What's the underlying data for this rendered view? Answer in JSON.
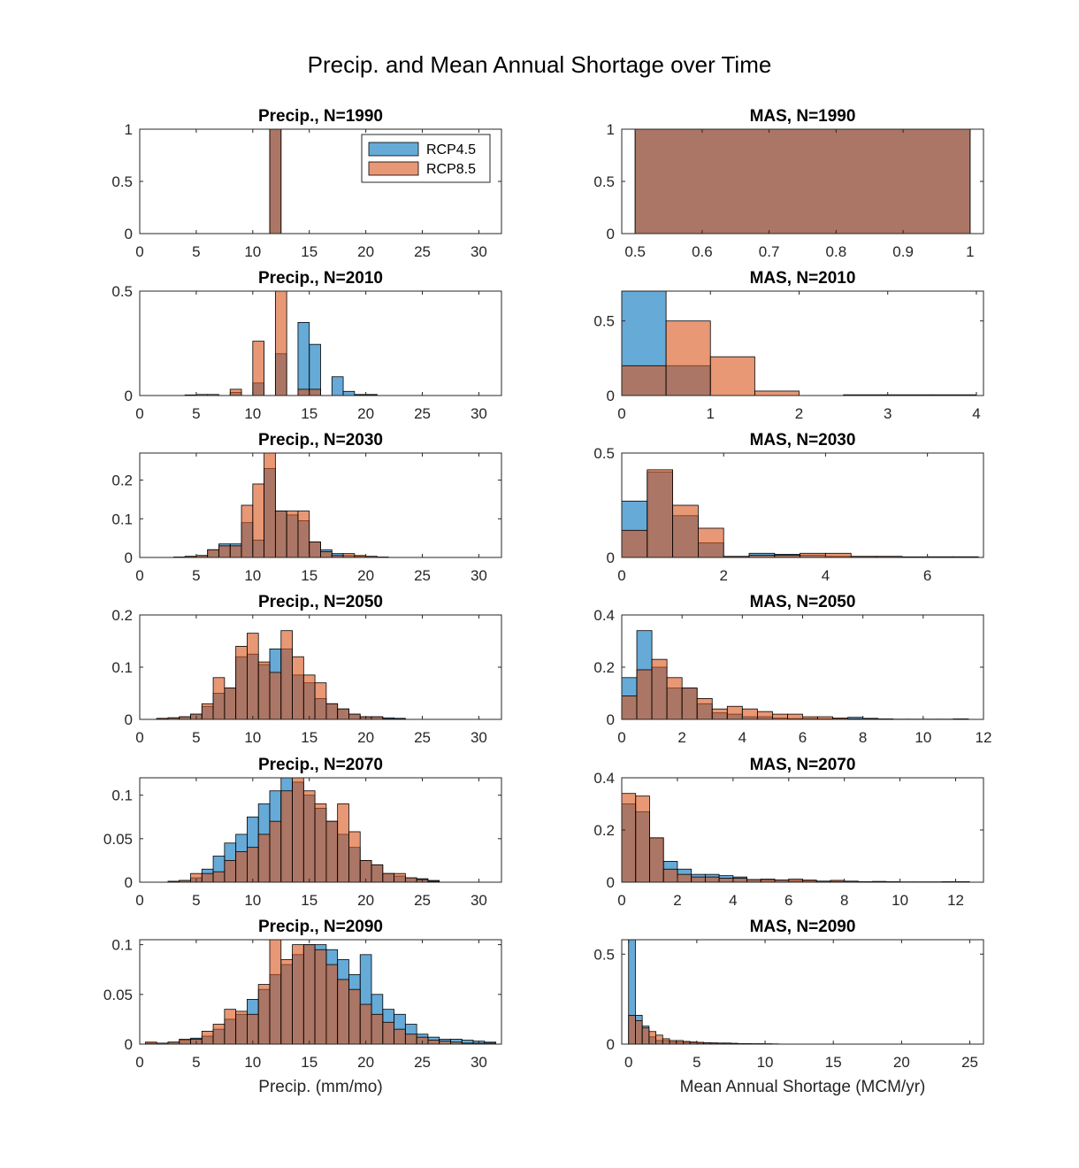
{
  "figure": {
    "title": "Precip. and Mean Annual Shortage over Time"
  },
  "legend": {
    "placement": "top-right of first subplot",
    "entries": [
      "RCP4.5",
      "RCP8.5"
    ]
  },
  "colors": {
    "rcp45": "#0072BD",
    "rcp85": "#D95319",
    "face_alpha": 0.6
  },
  "chart_data": [
    {
      "type": "bar",
      "title": "Precip., N=1990",
      "xlabel": "",
      "ylabel": "",
      "xlim": [
        0,
        32
      ],
      "ylim": [
        0,
        1
      ],
      "xticks": [
        0,
        5,
        10,
        15,
        20,
        25,
        30
      ],
      "yticks": [
        0,
        0.5,
        1
      ],
      "xticklabels": [
        "0",
        "5",
        "10",
        "15",
        "20",
        "25",
        "30"
      ],
      "yticklabels": [
        "0",
        "0.5",
        "1"
      ],
      "bin_edges": [
        11.5,
        12.5
      ],
      "series": [
        {
          "name": "RCP4.5",
          "values": [
            1
          ]
        },
        {
          "name": "RCP8.5",
          "values": [
            1
          ]
        }
      ]
    },
    {
      "type": "bar",
      "title": "MAS, N=1990",
      "xlabel": "",
      "ylabel": "",
      "xlim": [
        0.48,
        1.02
      ],
      "ylim": [
        0,
        1
      ],
      "xticks": [
        0.5,
        0.6,
        0.7,
        0.8,
        0.9,
        1
      ],
      "yticks": [
        0,
        0.5,
        1
      ],
      "xticklabels": [
        "0.5",
        "0.6",
        "0.7",
        "0.8",
        "0.9",
        "1"
      ],
      "yticklabels": [
        "0",
        "0.5",
        "1"
      ],
      "bin_edges": [
        0.5,
        1
      ],
      "series": [
        {
          "name": "RCP4.5",
          "values": [
            1
          ]
        },
        {
          "name": "RCP8.5",
          "values": [
            1
          ]
        }
      ]
    },
    {
      "type": "bar",
      "title": "Precip., N=2010",
      "xlabel": "",
      "ylabel": "",
      "xlim": [
        0,
        32
      ],
      "ylim": [
        0,
        0.5
      ],
      "xticks": [
        0,
        5,
        10,
        15,
        20,
        25,
        30
      ],
      "yticks": [
        0,
        0.5
      ],
      "xticklabels": [
        "0",
        "5",
        "10",
        "15",
        "20",
        "25",
        "30"
      ],
      "yticklabels": [
        "0",
        "0.5"
      ],
      "bin_edges": [
        4,
        5,
        6,
        7,
        8,
        9,
        10,
        11,
        12,
        13,
        14,
        15,
        16,
        17,
        18,
        19,
        20,
        21,
        22
      ],
      "series": [
        {
          "name": "RCP4.5",
          "values": [
            0,
            0,
            0,
            0,
            0.015,
            0,
            0.06,
            0,
            0.2,
            0,
            0.35,
            0.245,
            0,
            0.09,
            0.02,
            0.005,
            0.005,
            0
          ]
        },
        {
          "name": "RCP8.5",
          "values": [
            0.003,
            0.005,
            0.005,
            0,
            0.03,
            0,
            0.26,
            0,
            0.51,
            0,
            0.03,
            0.03,
            0,
            0,
            0,
            0.003,
            0.003,
            0
          ]
        }
      ]
    },
    {
      "type": "bar",
      "title": "MAS, N=2010",
      "xlabel": "",
      "ylabel": "",
      "xlim": [
        0,
        4.08
      ],
      "ylim": [
        0,
        0.7
      ],
      "xticks": [
        0,
        1,
        2,
        3,
        4
      ],
      "yticks": [
        0,
        0.5
      ],
      "xticklabels": [
        "0",
        "1",
        "2",
        "3",
        "4"
      ],
      "yticklabels": [
        "0",
        "0.5"
      ],
      "bin_edges": [
        0,
        0.5,
        1,
        1.5,
        2,
        2.5,
        3,
        3.5,
        4
      ],
      "series": [
        {
          "name": "RCP4.5",
          "values": [
            0.7,
            0.2,
            0,
            0,
            0,
            0,
            0,
            0
          ]
        },
        {
          "name": "RCP8.5",
          "values": [
            0.2,
            0.5,
            0.26,
            0.03,
            0,
            0.005,
            0.005,
            0.005
          ]
        }
      ]
    },
    {
      "type": "bar",
      "title": "Precip., N=2030",
      "xlabel": "",
      "ylabel": "",
      "xlim": [
        0,
        32
      ],
      "ylim": [
        0,
        0.27
      ],
      "xticks": [
        0,
        5,
        10,
        15,
        20,
        25,
        30
      ],
      "yticks": [
        0,
        0.1,
        0.2
      ],
      "xticklabels": [
        "0",
        "5",
        "10",
        "15",
        "20",
        "25",
        "30"
      ],
      "yticklabels": [
        "0",
        "0.1",
        "0.2"
      ],
      "bin_edges": [
        3,
        4,
        5,
        6,
        7,
        8,
        9,
        10,
        11,
        12,
        13,
        14,
        15,
        16,
        17,
        18,
        19,
        20,
        21,
        22
      ],
      "series": [
        {
          "name": "RCP4.5",
          "values": [
            0.001,
            0.002,
            0.005,
            0.02,
            0.035,
            0.035,
            0.09,
            0.045,
            0.23,
            0.12,
            0.11,
            0.095,
            0.04,
            0.02,
            0.01,
            0.005,
            0.003,
            0.001,
            0.001
          ]
        },
        {
          "name": "RCP8.5",
          "values": [
            0.001,
            0.003,
            0.005,
            0.02,
            0.03,
            0.03,
            0.135,
            0.19,
            0.27,
            0.12,
            0.12,
            0.12,
            0.04,
            0.015,
            0.005,
            0.01,
            0.005,
            0.003,
            0.001
          ]
        }
      ]
    },
    {
      "type": "bar",
      "title": "MAS, N=2030",
      "xlabel": "",
      "ylabel": "",
      "xlim": [
        0,
        7.1
      ],
      "ylim": [
        0,
        0.5
      ],
      "xticks": [
        0,
        2,
        4,
        6
      ],
      "yticks": [
        0,
        0.5
      ],
      "xticklabels": [
        "0",
        "2",
        "4",
        "6"
      ],
      "yticklabels": [
        "0",
        "0.5"
      ],
      "bin_edges": [
        0,
        0.5,
        1,
        1.5,
        2,
        2.5,
        3,
        3.5,
        4,
        4.5,
        5,
        5.5,
        6,
        6.5,
        7
      ],
      "series": [
        {
          "name": "RCP4.5",
          "values": [
            0.27,
            0.41,
            0.2,
            0.07,
            0.005,
            0.02,
            0.015,
            0.01,
            0.005,
            0.005,
            0.005,
            0.003,
            0.003,
            0.003
          ]
        },
        {
          "name": "RCP8.5",
          "values": [
            0.13,
            0.42,
            0.25,
            0.14,
            0.005,
            0.01,
            0.01,
            0.02,
            0.02,
            0.005,
            0.005,
            0,
            0.003,
            0.003
          ]
        }
      ]
    },
    {
      "type": "bar",
      "title": "Precip., N=2050",
      "xlabel": "",
      "ylabel": "",
      "xlim": [
        0,
        32
      ],
      "ylim": [
        0,
        0.2
      ],
      "xticks": [
        0,
        5,
        10,
        15,
        20,
        25,
        30
      ],
      "yticks": [
        0,
        0.1,
        0.2
      ],
      "xticklabels": [
        "0",
        "5",
        "10",
        "15",
        "20",
        "25",
        "30"
      ],
      "yticklabels": [
        "0",
        "0.1",
        "0.2"
      ],
      "bin_edges": [
        1.5,
        2.5,
        3.5,
        4.5,
        5.5,
        6.5,
        7.5,
        8.5,
        9.5,
        10.5,
        11.5,
        12.5,
        13.5,
        14.5,
        15.5,
        16.5,
        17.5,
        18.5,
        19.5,
        20.5,
        21.5,
        22.5,
        23.5
      ],
      "series": [
        {
          "name": "RCP4.5",
          "values": [
            0.001,
            0.003,
            0.005,
            0.01,
            0.025,
            0.05,
            0.06,
            0.12,
            0.125,
            0.105,
            0.135,
            0.135,
            0.085,
            0.07,
            0.04,
            0.03,
            0.02,
            0.01,
            0.005,
            0.005,
            0.003,
            0.002
          ]
        },
        {
          "name": "RCP8.5",
          "values": [
            0.002,
            0.003,
            0.005,
            0.01,
            0.03,
            0.08,
            0.06,
            0.14,
            0.165,
            0.11,
            0.09,
            0.17,
            0.12,
            0.085,
            0.07,
            0.03,
            0.02,
            0.01,
            0.005,
            0.005,
            0.001,
            0.001
          ]
        }
      ]
    },
    {
      "type": "bar",
      "title": "MAS, N=2050",
      "xlabel": "",
      "ylabel": "",
      "xlim": [
        0,
        12
      ],
      "ylim": [
        0,
        0.4
      ],
      "xticks": [
        0,
        2,
        4,
        6,
        8,
        10,
        12
      ],
      "yticks": [
        0,
        0.2,
        0.4
      ],
      "xticklabels": [
        "0",
        "2",
        "4",
        "6",
        "8",
        "10",
        "12"
      ],
      "yticklabels": [
        "0",
        "0.2",
        "0.4"
      ],
      "bin_edges": [
        0,
        0.5,
        1,
        1.5,
        2,
        2.5,
        3,
        3.5,
        4,
        4.5,
        5,
        5.5,
        6,
        6.5,
        7,
        7.5,
        8,
        8.5,
        9,
        9.5,
        10,
        10.5,
        11,
        11.5
      ],
      "series": [
        {
          "name": "RCP4.5",
          "values": [
            0.16,
            0.34,
            0.2,
            0.12,
            0.12,
            0.06,
            0.025,
            0.02,
            0.01,
            0.01,
            0.005,
            0.003,
            0.003,
            0.002,
            0.002,
            0.008,
            0.004,
            0.002,
            0.001,
            0.001,
            0.001,
            0.001,
            0.002
          ]
        },
        {
          "name": "RCP8.5",
          "values": [
            0.09,
            0.19,
            0.23,
            0.16,
            0.12,
            0.08,
            0.04,
            0.05,
            0.04,
            0.03,
            0.02,
            0.02,
            0.01,
            0.01,
            0.005,
            0.002,
            0.002,
            0,
            0,
            0,
            0,
            0,
            0.001
          ]
        }
      ]
    },
    {
      "type": "bar",
      "title": "Precip., N=2070",
      "xlabel": "",
      "ylabel": "",
      "xlim": [
        0,
        32
      ],
      "ylim": [
        0,
        0.12
      ],
      "xticks": [
        0,
        5,
        10,
        15,
        20,
        25,
        30
      ],
      "yticks": [
        0,
        0.05,
        0.1
      ],
      "xticklabels": [
        "0",
        "5",
        "10",
        "15",
        "20",
        "25",
        "30"
      ],
      "yticklabels": [
        "0",
        "0.05",
        "0.1"
      ],
      "bin_edges": [
        2.5,
        3.5,
        4.5,
        5.5,
        6.5,
        7.5,
        8.5,
        9.5,
        10.5,
        11.5,
        12.5,
        13.5,
        14.5,
        15.5,
        16.5,
        17.5,
        18.5,
        19.5,
        20.5,
        21.5,
        22.5,
        23.5,
        24.5,
        25.5,
        26.5
      ],
      "series": [
        {
          "name": "RCP4.5",
          "values": [
            0.001,
            0.002,
            0.005,
            0.015,
            0.03,
            0.045,
            0.055,
            0.075,
            0.09,
            0.105,
            0.12,
            0.115,
            0.1,
            0.085,
            0.07,
            0.055,
            0.04,
            0.025,
            0.02,
            0.01,
            0.007,
            0.005,
            0.004,
            0.002
          ]
        },
        {
          "name": "RCP8.5",
          "values": [
            0.001,
            0.002,
            0.01,
            0.01,
            0.012,
            0.025,
            0.035,
            0.04,
            0.055,
            0.07,
            0.105,
            0.12,
            0.105,
            0.09,
            0.07,
            0.09,
            0.058,
            0.025,
            0.02,
            0.01,
            0.01,
            0.005,
            0.003,
            0.001
          ]
        }
      ]
    },
    {
      "type": "bar",
      "title": "MAS, N=2070",
      "xlabel": "",
      "ylabel": "",
      "xlim": [
        0,
        13
      ],
      "ylim": [
        0,
        0.4
      ],
      "xticks": [
        0,
        2,
        4,
        6,
        8,
        10,
        12
      ],
      "yticks": [
        0,
        0.2,
        0.4
      ],
      "xticklabels": [
        "0",
        "2",
        "4",
        "6",
        "8",
        "10",
        "12"
      ],
      "yticklabels": [
        "0",
        "0.2",
        "0.4"
      ],
      "bin_edges": [
        0,
        0.5,
        1,
        1.5,
        2,
        2.5,
        3,
        3.5,
        4,
        4.5,
        5,
        5.5,
        6,
        6.5,
        7,
        7.5,
        8,
        8.5,
        9,
        9.5,
        10,
        10.5,
        11,
        11.5,
        12,
        12.5
      ],
      "series": [
        {
          "name": "RCP4.5",
          "values": [
            0.3,
            0.27,
            0.17,
            0.08,
            0.05,
            0.03,
            0.03,
            0.025,
            0.02,
            0.01,
            0.008,
            0.008,
            0.006,
            0.005,
            0.004,
            0.003,
            0.002,
            0.002,
            0.003,
            0.002,
            0.001,
            0.001,
            0.001,
            0.001,
            0.001
          ]
        },
        {
          "name": "RCP8.5",
          "values": [
            0.34,
            0.33,
            0.17,
            0.05,
            0.03,
            0.02,
            0.02,
            0.015,
            0.015,
            0.01,
            0.012,
            0.008,
            0.012,
            0.008,
            0.004,
            0.007,
            0.004,
            0.002,
            0.002,
            0.001,
            0.001,
            0.001,
            0.001,
            0.002,
            0.002
          ]
        }
      ]
    },
    {
      "type": "bar",
      "title": "Precip., N=2090",
      "xlabel": "Precip. (mm/mo)",
      "ylabel": "",
      "xlim": [
        0,
        32
      ],
      "ylim": [
        0,
        0.105
      ],
      "xticks": [
        0,
        5,
        10,
        15,
        20,
        25,
        30
      ],
      "yticks": [
        0,
        0.05,
        0.1
      ],
      "xticklabels": [
        "0",
        "5",
        "10",
        "15",
        "20",
        "25",
        "30"
      ],
      "yticklabels": [
        "0",
        "0.05",
        "0.1"
      ],
      "bin_edges": [
        0.5,
        1.5,
        2.5,
        3.5,
        4.5,
        5.5,
        6.5,
        7.5,
        8.5,
        9.5,
        10.5,
        11.5,
        12.5,
        13.5,
        14.5,
        15.5,
        16.5,
        17.5,
        18.5,
        19.5,
        20.5,
        21.5,
        22.5,
        23.5,
        24.5,
        25.5,
        26.5,
        27.5,
        28.5,
        29.5,
        30.5,
        31.5
      ],
      "series": [
        {
          "name": "RCP4.5",
          "values": [
            0.001,
            0.001,
            0.002,
            0.004,
            0.006,
            0.008,
            0.015,
            0.025,
            0.03,
            0.045,
            0.055,
            0.07,
            0.08,
            0.09,
            0.1,
            0.1,
            0.095,
            0.085,
            0.07,
            0.09,
            0.05,
            0.035,
            0.03,
            0.02,
            0.01,
            0.007,
            0.005,
            0.005,
            0.004,
            0.003,
            0.002
          ]
        },
        {
          "name": "RCP8.5",
          "values": [
            0.002,
            0,
            0.002,
            0.005,
            0.005,
            0.013,
            0.02,
            0.035,
            0.033,
            0.03,
            0.06,
            0.105,
            0.085,
            0.1,
            0.1,
            0.095,
            0.08,
            0.065,
            0.055,
            0.04,
            0.03,
            0.022,
            0.015,
            0.01,
            0.007,
            0.004,
            0.003,
            0.002,
            0.001,
            0.001,
            0.001
          ]
        }
      ]
    },
    {
      "type": "bar",
      "title": "MAS, N=2090",
      "xlabel": "Mean Annual Shortage (MCM/yr)",
      "ylabel": "",
      "xlim": [
        -0.5,
        26
      ],
      "ylim": [
        0,
        0.58
      ],
      "xticks": [
        0,
        5,
        10,
        15,
        20,
        25
      ],
      "yticks": [
        0,
        0.5
      ],
      "xticklabels": [
        "0",
        "5",
        "10",
        "15",
        "20",
        "25"
      ],
      "yticklabels": [
        "0",
        "0.5"
      ],
      "bin_edges": [
        0,
        0.5,
        1,
        1.5,
        2,
        2.5,
        3,
        3.5,
        4,
        4.5,
        5,
        5.5,
        6,
        6.5,
        7,
        7.5,
        8,
        8.5,
        9,
        9.5,
        10,
        10.5,
        11
      ],
      "series": [
        {
          "name": "RCP4.5",
          "values": [
            0.58,
            0.16,
            0.1,
            0.04,
            0.02,
            0.02,
            0.012,
            0.012,
            0.01,
            0.008,
            0.006,
            0.006,
            0.004,
            0.004,
            0.004,
            0.004,
            0.003,
            0.002,
            0.002,
            0.002,
            0.002,
            0.001
          ]
        },
        {
          "name": "RCP8.5",
          "values": [
            0.16,
            0.13,
            0.09,
            0.07,
            0.05,
            0.03,
            0.02,
            0.02,
            0.015,
            0.012,
            0.01,
            0.008,
            0.007,
            0.006,
            0.006,
            0.004,
            0.003,
            0.003,
            0.002,
            0.002,
            0.001,
            0.001
          ]
        }
      ]
    }
  ]
}
